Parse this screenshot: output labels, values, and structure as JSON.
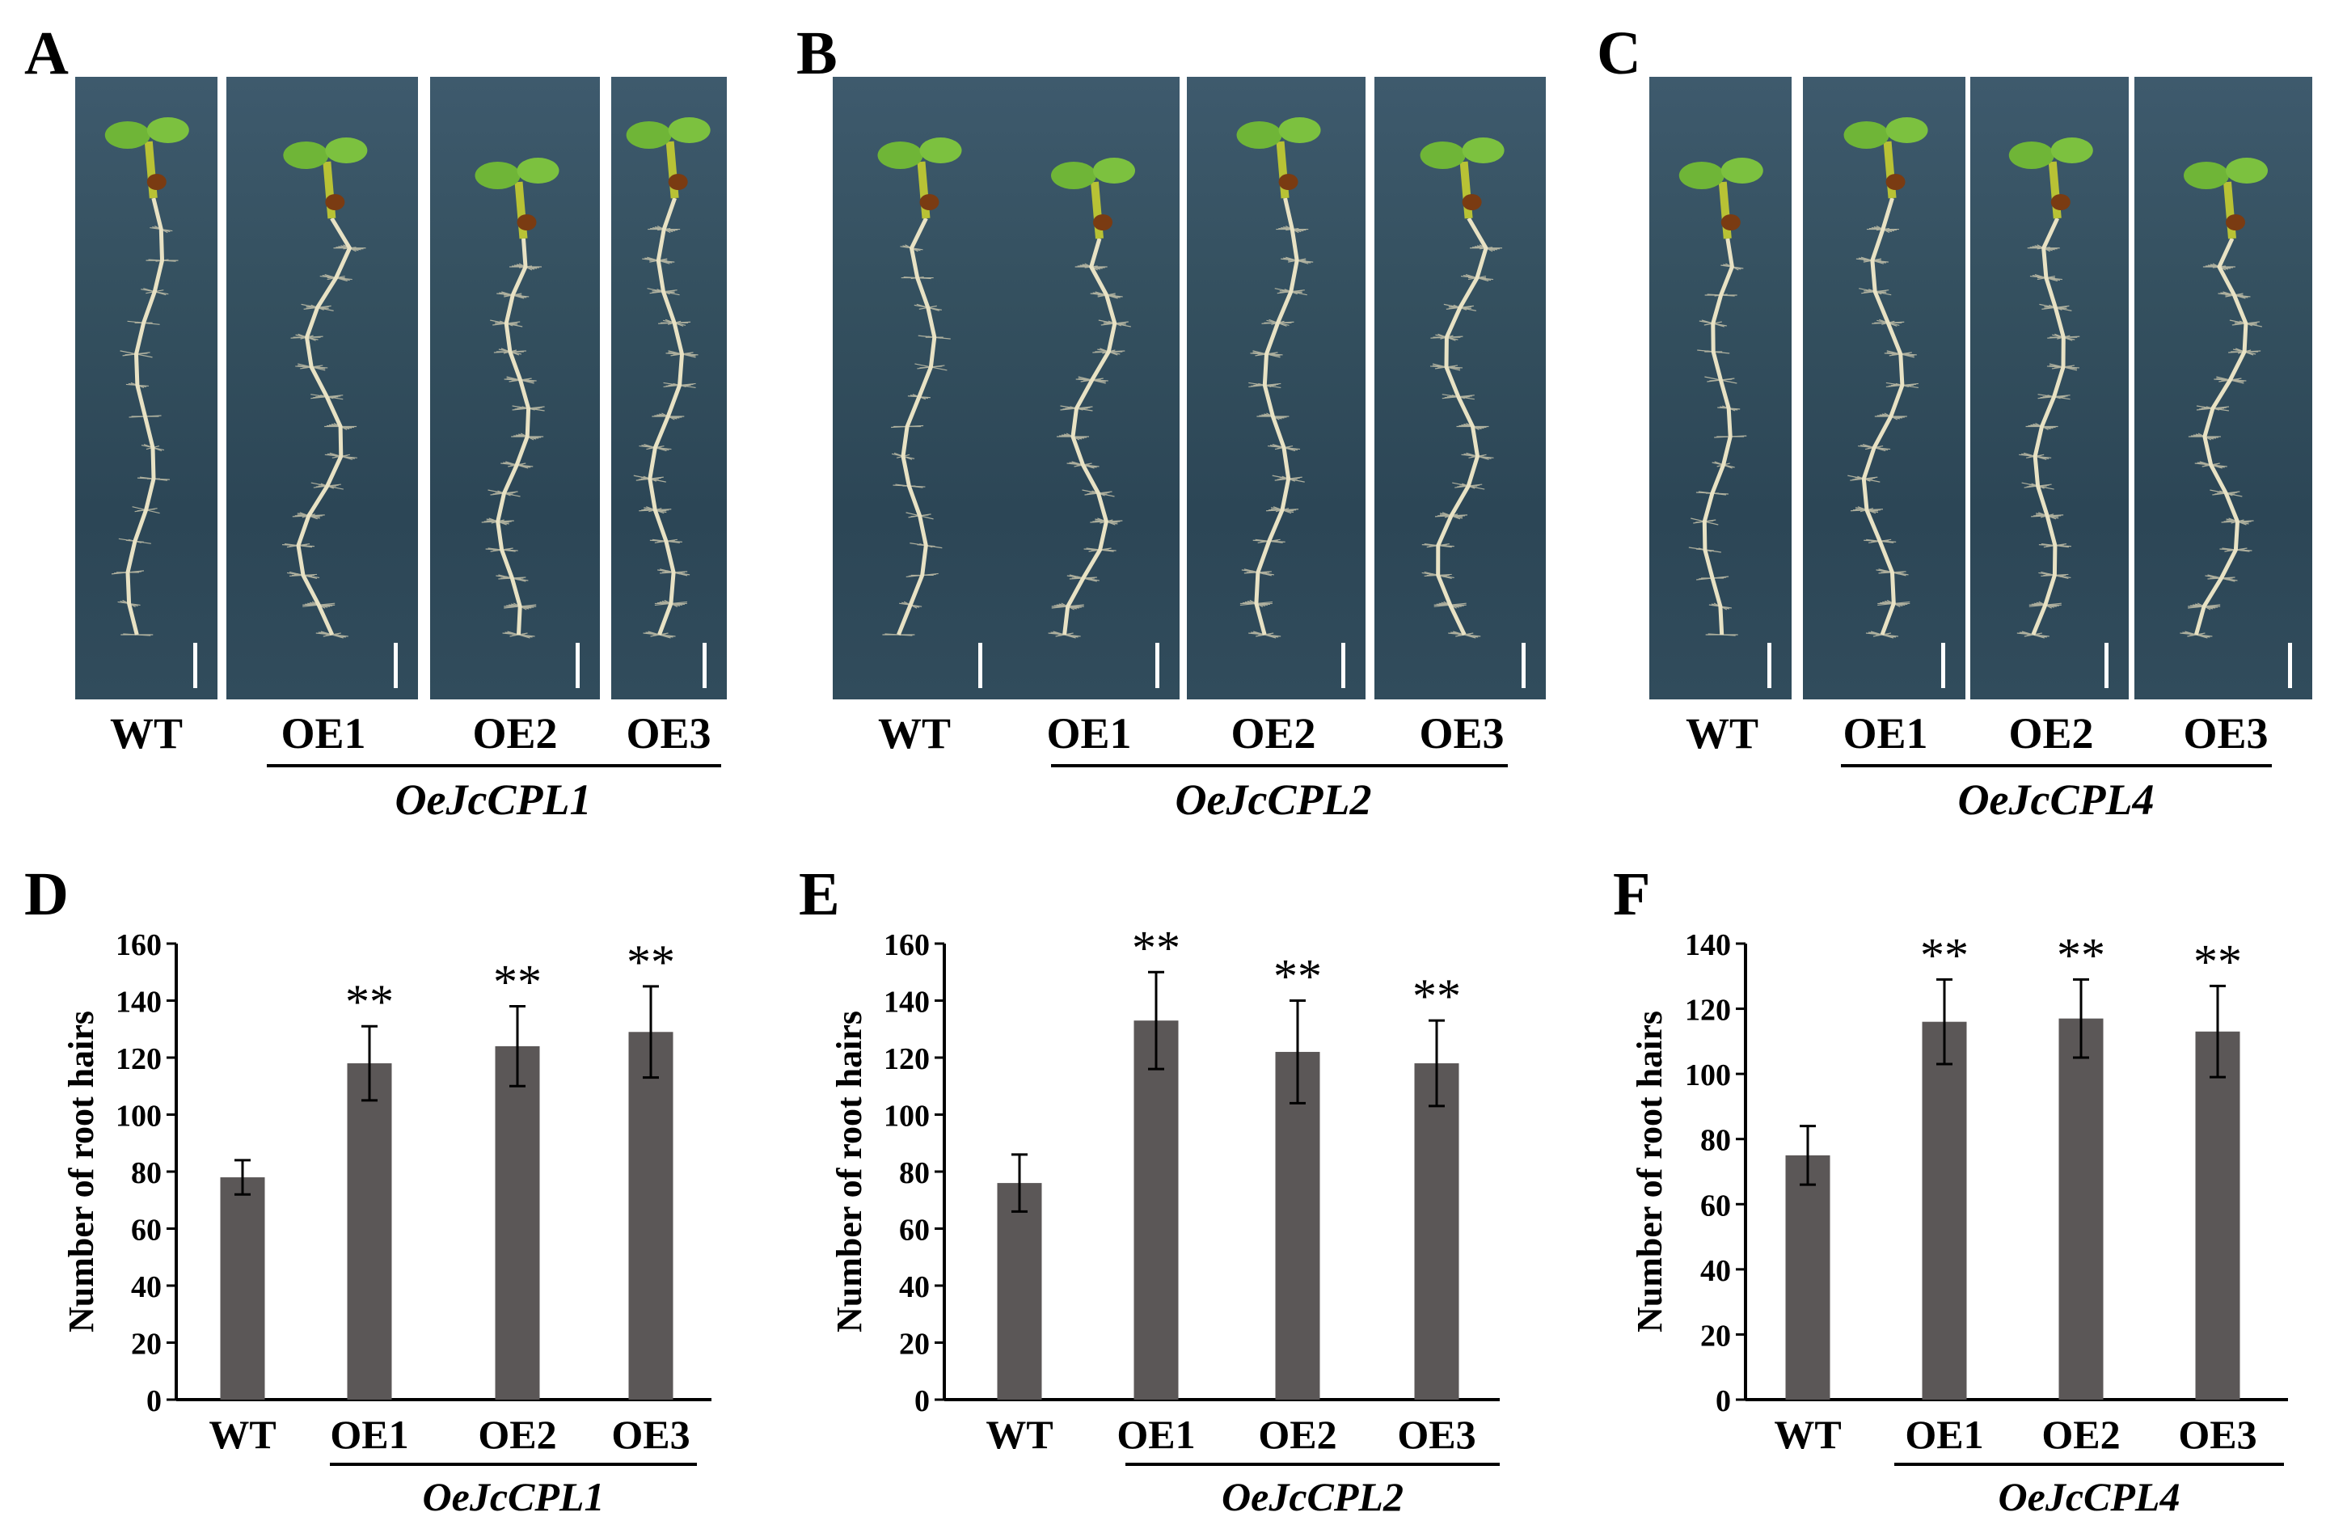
{
  "figure_panels": [
    {
      "letter": "A",
      "lanes": [
        "WT",
        "OE1",
        "OE2",
        "OE3"
      ],
      "gene": "OeJcCPL1"
    },
    {
      "letter": "B",
      "lanes": [
        "WT",
        "OE1",
        "OE2",
        "OE3"
      ],
      "gene": "OeJcCPL2"
    },
    {
      "letter": "C",
      "lanes": [
        "WT",
        "OE1",
        "OE2",
        "OE3"
      ],
      "gene": "OeJcCPL4"
    }
  ],
  "chart_data": [
    {
      "panel": "D",
      "type": "bar",
      "categories": [
        "WT",
        "OE1",
        "OE2",
        "OE3"
      ],
      "values": [
        78,
        118,
        124,
        129
      ],
      "errors": [
        6,
        13,
        14,
        16
      ],
      "significance": [
        "",
        "**",
        "**",
        "**"
      ],
      "ylabel": "Number of root hairs",
      "group_label": "OeJcCPL1",
      "ylim": [
        0,
        160
      ],
      "yticks": [
        0,
        20,
        40,
        60,
        80,
        100,
        120,
        140,
        160
      ],
      "bar_color": "#5b5757"
    },
    {
      "panel": "E",
      "type": "bar",
      "categories": [
        "WT",
        "OE1",
        "OE2",
        "OE3"
      ],
      "values": [
        76,
        133,
        122,
        118
      ],
      "errors": [
        10,
        17,
        18,
        15
      ],
      "significance": [
        "",
        "**",
        "**",
        "**"
      ],
      "ylabel": "Number of root hairs",
      "group_label": "OeJcCPL2",
      "ylim": [
        0,
        160
      ],
      "yticks": [
        0,
        20,
        40,
        60,
        80,
        100,
        120,
        140,
        160
      ],
      "bar_color": "#5b5757"
    },
    {
      "panel": "F",
      "type": "bar",
      "categories": [
        "WT",
        "OE1",
        "OE2",
        "OE3"
      ],
      "values": [
        75,
        116,
        117,
        113
      ],
      "errors": [
        9,
        13,
        12,
        14
      ],
      "significance": [
        "",
        "**",
        "**",
        "**"
      ],
      "ylabel": "Number of root hairs",
      "group_label": "OeJcCPL4",
      "ylim": [
        0,
        140
      ],
      "yticks": [
        0,
        20,
        40,
        60,
        80,
        100,
        120,
        140
      ],
      "bar_color": "#5b5757"
    }
  ]
}
